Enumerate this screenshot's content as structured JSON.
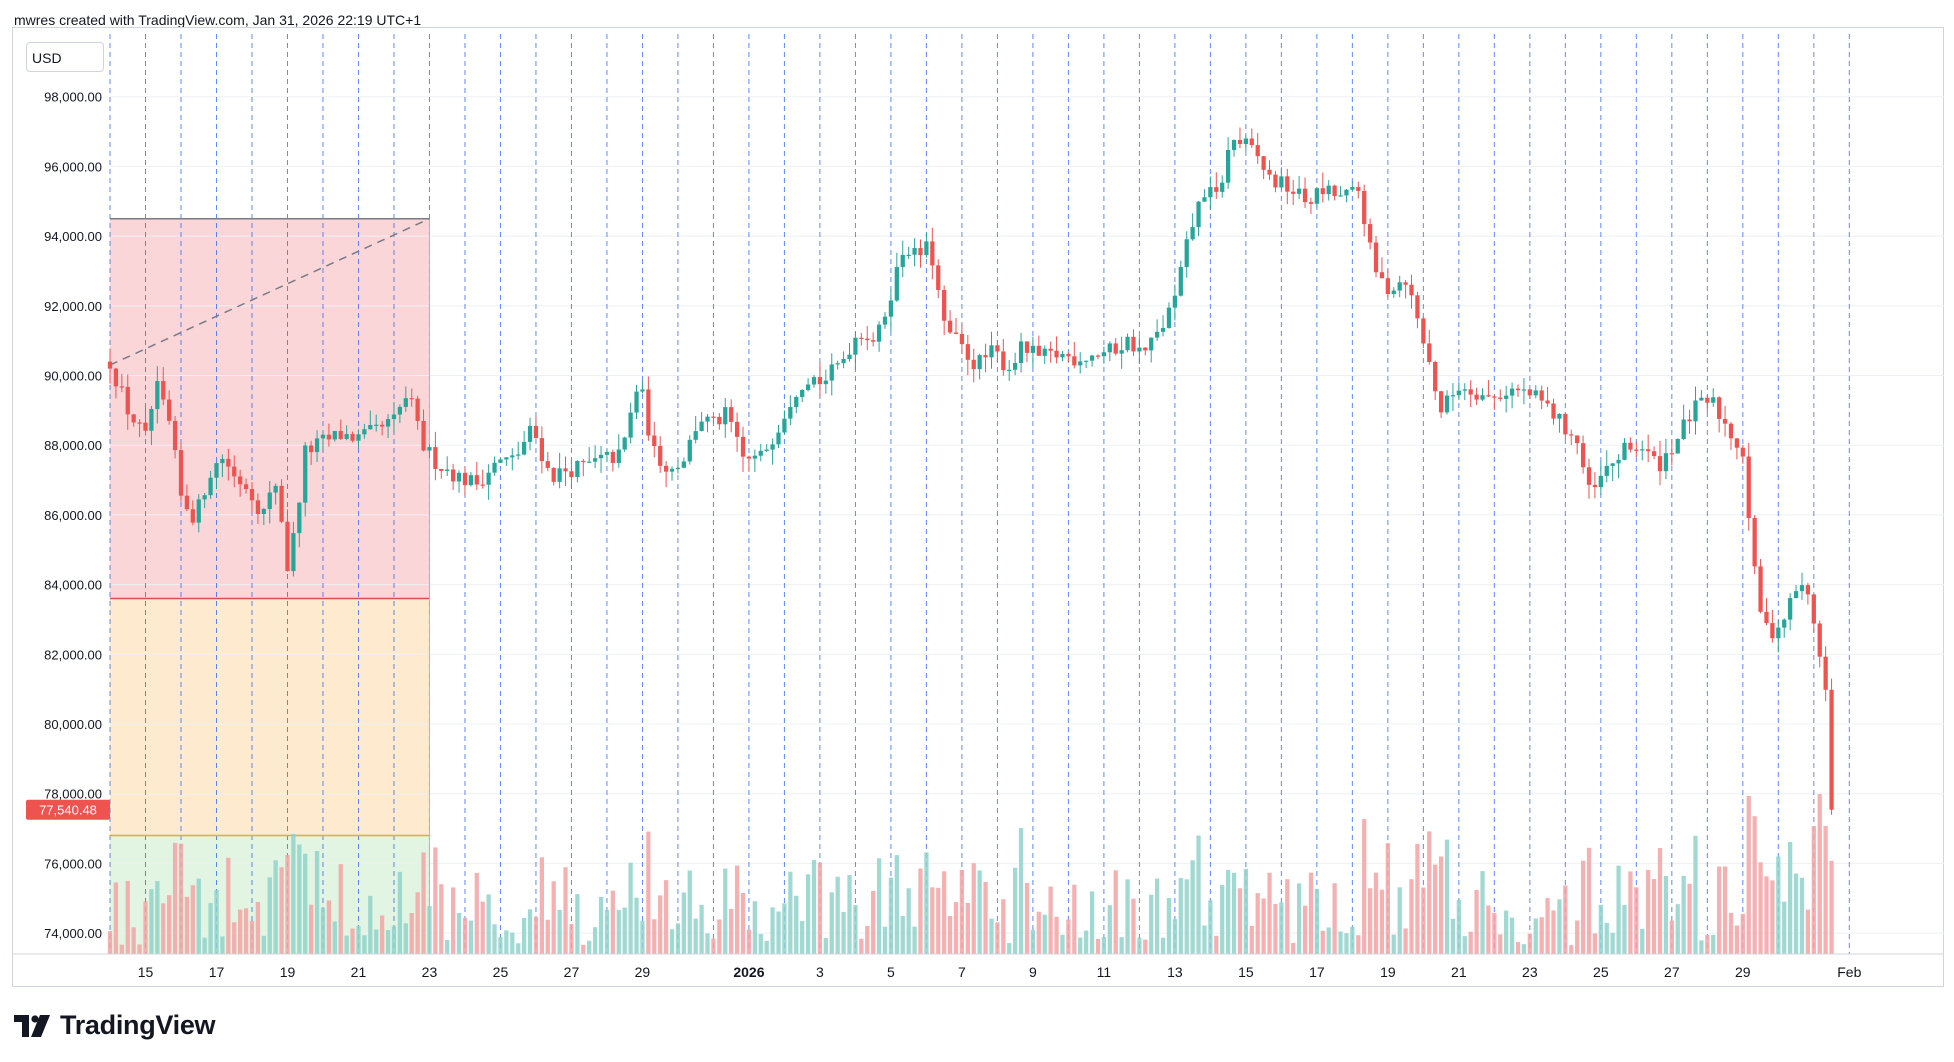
{
  "header": {
    "attribution": "mwres created with TradingView.com, Jan 31, 2026 22:19 UTC+1"
  },
  "toolbar": {
    "currency_label": "USD"
  },
  "footer": {
    "brand": "TradingView",
    "logo_icon": "tradingview-logo-icon"
  },
  "colors": {
    "up": "#26a69a",
    "down": "#ef5350",
    "vol_up": "#8fd2ca",
    "vol_down": "#f3a3a3",
    "grid_dashed": "#2962ff",
    "zone_red": "#f8c8cc",
    "zone_orange": "#fde3bf",
    "zone_green": "#d8f0d8",
    "line_top": "#787b86",
    "line_mid": "#e04a4f",
    "line_low": "#f5a623",
    "price_tag": "#ef5350"
  },
  "chart_data": {
    "type": "candlestick",
    "y_ticks": [
      "98,000.00",
      "96,000.00",
      "94,000.00",
      "92,000.00",
      "90,000.00",
      "88,000.00",
      "86,000.00",
      "84,000.00",
      "82,000.00",
      "80,000.00",
      "78,000.00",
      "76,000.00",
      "74,000.00"
    ],
    "y_tick_values": [
      98000,
      96000,
      94000,
      92000,
      90000,
      88000,
      86000,
      84000,
      82000,
      80000,
      78000,
      76000,
      74000
    ],
    "ylim": [
      73400,
      99800
    ],
    "x_ticks": [
      {
        "day": 15,
        "label": "15",
        "bold": false
      },
      {
        "day": 17,
        "label": "17",
        "bold": false
      },
      {
        "day": 19,
        "label": "19",
        "bold": false
      },
      {
        "day": 21,
        "label": "21",
        "bold": false
      },
      {
        "day": 23,
        "label": "23",
        "bold": false
      },
      {
        "day": 25,
        "label": "25",
        "bold": false
      },
      {
        "day": 27,
        "label": "27",
        "bold": false
      },
      {
        "day": 29,
        "label": "29",
        "bold": false
      },
      {
        "day": 32,
        "label": "2026",
        "bold": true
      },
      {
        "day": 34,
        "label": "3",
        "bold": false
      },
      {
        "day": 36,
        "label": "5",
        "bold": false
      },
      {
        "day": 38,
        "label": "7",
        "bold": false
      },
      {
        "day": 40,
        "label": "9",
        "bold": false
      },
      {
        "day": 42,
        "label": "11",
        "bold": false
      },
      {
        "day": 44,
        "label": "13",
        "bold": false
      },
      {
        "day": 46,
        "label": "15",
        "bold": false
      },
      {
        "day": 48,
        "label": "17",
        "bold": false
      },
      {
        "day": 50,
        "label": "19",
        "bold": false
      },
      {
        "day": 52,
        "label": "21",
        "bold": false
      },
      {
        "day": 54,
        "label": "23",
        "bold": false
      },
      {
        "day": 56,
        "label": "25",
        "bold": false
      },
      {
        "day": 58,
        "label": "27",
        "bold": false
      },
      {
        "day": 60,
        "label": "29",
        "bold": false
      },
      {
        "day": 63,
        "label": "Feb",
        "bold": false
      }
    ],
    "x_range_days": [
      14.0,
      64.4
    ],
    "daily_closes": [
      {
        "day": 14.0,
        "price": 90400
      },
      {
        "day": 14.5,
        "price": 89000
      },
      {
        "day": 15.0,
        "price": 88200
      },
      {
        "day": 15.3,
        "price": 89700
      },
      {
        "day": 15.7,
        "price": 88500
      },
      {
        "day": 16.0,
        "price": 86500
      },
      {
        "day": 16.4,
        "price": 85900
      },
      {
        "day": 16.8,
        "price": 87200
      },
      {
        "day": 17.2,
        "price": 87700
      },
      {
        "day": 17.5,
        "price": 87100
      },
      {
        "day": 17.9,
        "price": 86800
      },
      {
        "day": 18.3,
        "price": 86000
      },
      {
        "day": 18.7,
        "price": 87000
      },
      {
        "day": 19.0,
        "price": 84500
      },
      {
        "day": 19.2,
        "price": 85500
      },
      {
        "day": 19.5,
        "price": 87800
      },
      {
        "day": 20.0,
        "price": 88100
      },
      {
        "day": 20.5,
        "price": 88300
      },
      {
        "day": 21.0,
        "price": 88200
      },
      {
        "day": 21.5,
        "price": 88400
      },
      {
        "day": 22.0,
        "price": 88700
      },
      {
        "day": 22.4,
        "price": 89500
      },
      {
        "day": 22.8,
        "price": 88000
      },
      {
        "day": 23.2,
        "price": 87500
      },
      {
        "day": 23.8,
        "price": 87100
      },
      {
        "day": 24.3,
        "price": 86900
      },
      {
        "day": 24.9,
        "price": 87500
      },
      {
        "day": 25.4,
        "price": 87600
      },
      {
        "day": 25.9,
        "price": 88500
      },
      {
        "day": 26.4,
        "price": 87100
      },
      {
        "day": 26.9,
        "price": 87300
      },
      {
        "day": 27.4,
        "price": 87400
      },
      {
        "day": 27.9,
        "price": 87600
      },
      {
        "day": 28.4,
        "price": 87700
      },
      {
        "day": 28.9,
        "price": 89900
      },
      {
        "day": 29.3,
        "price": 87800
      },
      {
        "day": 29.8,
        "price": 87300
      },
      {
        "day": 30.2,
        "price": 87700
      },
      {
        "day": 30.6,
        "price": 88800
      },
      {
        "day": 31.0,
        "price": 88600
      },
      {
        "day": 31.4,
        "price": 88900
      },
      {
        "day": 31.8,
        "price": 87600
      },
      {
        "day": 32.3,
        "price": 87600
      },
      {
        "day": 32.8,
        "price": 88500
      },
      {
        "day": 33.3,
        "price": 89600
      },
      {
        "day": 33.7,
        "price": 90000
      },
      {
        "day": 34.1,
        "price": 89800
      },
      {
        "day": 34.6,
        "price": 90400
      },
      {
        "day": 35.1,
        "price": 91300
      },
      {
        "day": 35.6,
        "price": 91000
      },
      {
        "day": 36.0,
        "price": 92400
      },
      {
        "day": 36.4,
        "price": 93800
      },
      {
        "day": 36.7,
        "price": 93400
      },
      {
        "day": 37.1,
        "price": 93700
      },
      {
        "day": 37.5,
        "price": 91400
      },
      {
        "day": 37.9,
        "price": 90900
      },
      {
        "day": 38.4,
        "price": 90300
      },
      {
        "day": 38.9,
        "price": 90700
      },
      {
        "day": 39.3,
        "price": 90200
      },
      {
        "day": 39.7,
        "price": 90800
      },
      {
        "day": 40.2,
        "price": 90500
      },
      {
        "day": 40.7,
        "price": 90600
      },
      {
        "day": 41.2,
        "price": 90500
      },
      {
        "day": 41.7,
        "price": 90600
      },
      {
        "day": 42.2,
        "price": 90700
      },
      {
        "day": 42.7,
        "price": 91000
      },
      {
        "day": 43.1,
        "price": 90600
      },
      {
        "day": 43.6,
        "price": 91300
      },
      {
        "day": 44.0,
        "price": 92200
      },
      {
        "day": 44.4,
        "price": 94000
      },
      {
        "day": 44.8,
        "price": 95300
      },
      {
        "day": 45.2,
        "price": 95100
      },
      {
        "day": 45.6,
        "price": 96800
      },
      {
        "day": 46.0,
        "price": 96600
      },
      {
        "day": 46.3,
        "price": 96300
      },
      {
        "day": 46.7,
        "price": 95600
      },
      {
        "day": 47.2,
        "price": 95400
      },
      {
        "day": 47.7,
        "price": 95000
      },
      {
        "day": 48.2,
        "price": 95300
      },
      {
        "day": 48.7,
        "price": 95100
      },
      {
        "day": 49.2,
        "price": 95300
      },
      {
        "day": 49.6,
        "price": 93000
      },
      {
        "day": 50.0,
        "price": 92500
      },
      {
        "day": 50.5,
        "price": 92800
      },
      {
        "day": 51.0,
        "price": 91000
      },
      {
        "day": 51.5,
        "price": 89000
      },
      {
        "day": 52.0,
        "price": 89700
      },
      {
        "day": 52.4,
        "price": 89600
      },
      {
        "day": 52.9,
        "price": 89300
      },
      {
        "day": 53.4,
        "price": 89600
      },
      {
        "day": 53.9,
        "price": 89500
      },
      {
        "day": 54.4,
        "price": 89200
      },
      {
        "day": 54.9,
        "price": 88600
      },
      {
        "day": 55.3,
        "price": 88200
      },
      {
        "day": 55.7,
        "price": 86500
      },
      {
        "day": 56.1,
        "price": 87200
      },
      {
        "day": 56.6,
        "price": 87800
      },
      {
        "day": 57.1,
        "price": 88000
      },
      {
        "day": 57.6,
        "price": 87400
      },
      {
        "day": 58.1,
        "price": 88100
      },
      {
        "day": 58.6,
        "price": 89000
      },
      {
        "day": 59.1,
        "price": 89300
      },
      {
        "day": 59.5,
        "price": 88600
      },
      {
        "day": 60.0,
        "price": 87800
      },
      {
        "day": 60.3,
        "price": 84500
      },
      {
        "day": 60.6,
        "price": 82700
      },
      {
        "day": 60.9,
        "price": 82700
      },
      {
        "day": 61.2,
        "price": 83100
      },
      {
        "day": 61.5,
        "price": 83900
      },
      {
        "day": 61.8,
        "price": 83800
      },
      {
        "day": 62.1,
        "price": 82500
      },
      {
        "day": 62.4,
        "price": 80500
      },
      {
        "day": 62.6,
        "price": 77540
      }
    ],
    "annotations": {
      "zone_x_days": [
        14.0,
        23.0
      ],
      "range_top": 94500,
      "range_mid": 83600,
      "range_low": 76800,
      "trend_line": [
        {
          "day": 14.0,
          "price": 90300
        },
        {
          "day": 23.0,
          "price": 94500
        }
      ]
    },
    "last_price": "77,540.48",
    "last_price_value": 77540.48,
    "grid": "vertical dashed at day boundaries",
    "volume_pane": true
  }
}
